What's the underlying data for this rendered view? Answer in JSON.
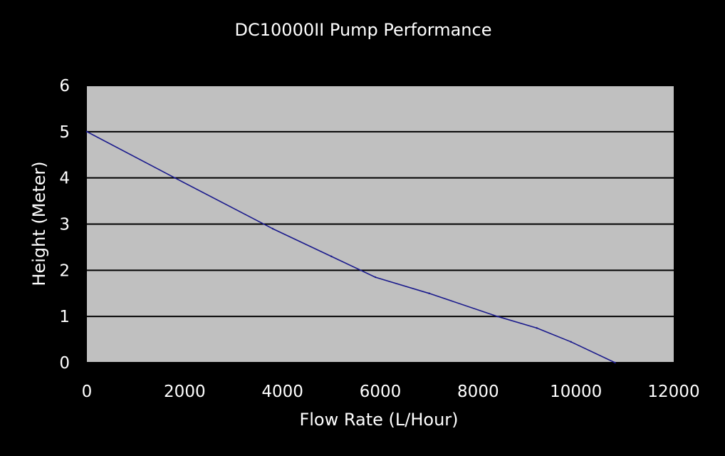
{
  "colors": {
    "background": "#000000",
    "plot_area": "#c0c0c0",
    "gridline": "#000000",
    "series_line": "#1a1a8c",
    "text": "#ffffff"
  },
  "chart_data": {
    "type": "line",
    "title": "DC10000II Pump Performance",
    "xlabel": "Flow Rate (L/Hour)",
    "ylabel": "Height (Meter)",
    "xlim": [
      0,
      12000
    ],
    "ylim": [
      0,
      6
    ],
    "x_ticks": [
      "0",
      "2000",
      "4000",
      "6000",
      "8000",
      "10000",
      "12000"
    ],
    "y_ticks": [
      "0",
      "1",
      "2",
      "3",
      "4",
      "5",
      "6"
    ],
    "grid": "horizontal major",
    "legend": "none",
    "series": [
      {
        "x": [
          0,
          1800,
          3800,
          5000,
          5900,
          7000,
          8400,
          9200,
          9900,
          10800
        ],
        "y": [
          5.0,
          4.0,
          2.9,
          2.3,
          1.85,
          1.5,
          1.0,
          0.75,
          0.45,
          0.0
        ]
      }
    ]
  }
}
